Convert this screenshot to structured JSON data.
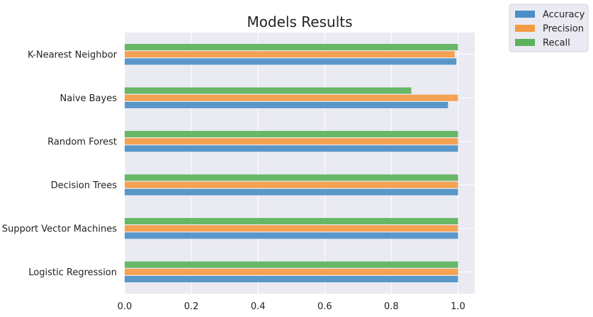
{
  "chart_data": {
    "type": "bar",
    "orientation": "horizontal",
    "title": "Models Results",
    "xlabel": "",
    "ylabel": "",
    "categories": [
      "Logistic Regression",
      "Support Vector Machines",
      "Decision Trees",
      "Random Forest",
      "Naive Bayes",
      "K-Nearest Neighbor"
    ],
    "series": [
      {
        "name": "Accuracy",
        "color": "#4c8fc6",
        "values": [
          1.0,
          1.0,
          1.0,
          1.0,
          0.97,
          0.995
        ]
      },
      {
        "name": "Precision",
        "color": "#f59a44",
        "values": [
          1.0,
          1.0,
          1.0,
          1.0,
          1.0,
          0.99
        ]
      },
      {
        "name": "Recall",
        "color": "#5bb25b",
        "values": [
          1.0,
          1.0,
          1.0,
          1.0,
          0.86,
          1.0
        ]
      }
    ],
    "xlim": [
      0,
      1.05
    ],
    "xticks": [
      "0.0",
      "0.2",
      "0.4",
      "0.6",
      "0.8",
      "1.0"
    ],
    "grid": true,
    "legend_position": "upper-right-outside"
  }
}
